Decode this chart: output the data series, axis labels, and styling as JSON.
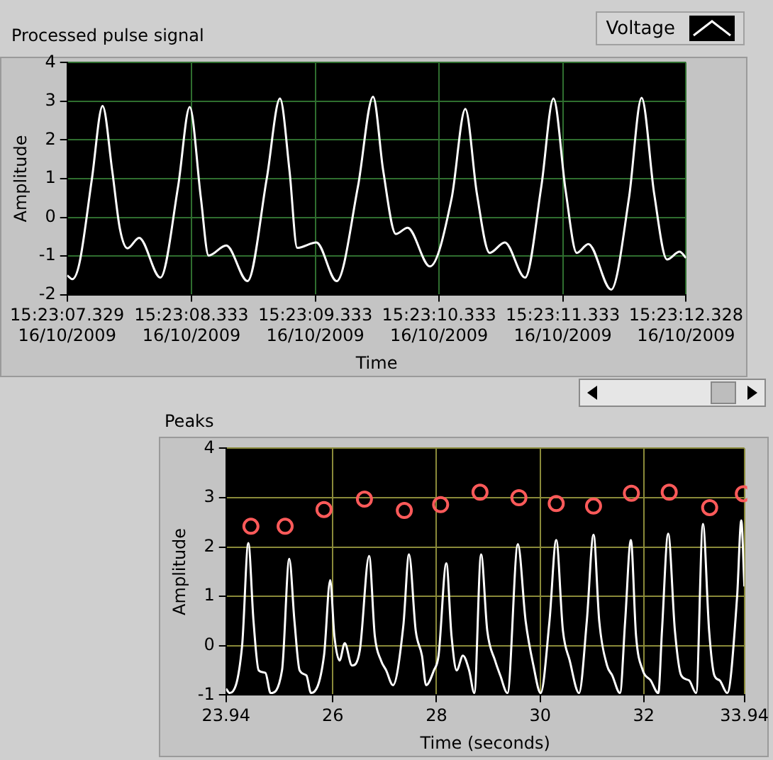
{
  "chart_data": [
    {
      "type": "line",
      "title": "Processed pulse signal",
      "xlabel": "Time",
      "ylabel": "Amplitude",
      "legend": "top right",
      "grid": true,
      "xlim": [
        "2009-10-16T15:23:07.329",
        "2009-10-16T15:23:12.328"
      ],
      "xticks": [
        {
          "value": "2009-10-16T15:23:07.329",
          "label": "15:23:07.329\n16/10/2009"
        },
        {
          "value": "2009-10-16T15:23:08.333",
          "label": "15:23:08.333\n16/10/2009"
        },
        {
          "value": "2009-10-16T15:23:09.333",
          "label": "15:23:09.333\n16/10/2009"
        },
        {
          "value": "2009-10-16T15:23:10.333",
          "label": "15:23:10.333\n16/10/2009"
        },
        {
          "value": "2009-10-16T15:23:11.333",
          "label": "15:23:11.333\n16/10/2009"
        },
        {
          "value": "2009-10-16T15:23:12.328",
          "label": "15:23:12.328\n16/10/2009"
        }
      ],
      "ylim": [
        -2,
        4
      ],
      "yticks": [
        -2,
        -1,
        0,
        1,
        2,
        3,
        4
      ],
      "x": [
        "2009-10-16T15:23:07.329",
        "2009-10-16T15:23:07.370",
        "2009-10-16T15:23:07.427",
        "2009-10-16T15:23:07.529",
        "2009-10-16T15:23:07.615",
        "2009-10-16T15:23:07.693",
        "2009-10-16T15:23:07.755",
        "2009-10-16T15:23:07.816",
        "2009-10-16T15:23:07.910",
        "2009-10-16T15:23:08.082",
        "2009-10-16T15:23:08.225",
        "2009-10-16T15:23:08.319",
        "2009-10-16T15:23:08.409",
        "2009-10-16T15:23:08.471",
        "2009-10-16T15:23:08.614",
        "2009-10-16T15:23:08.786",
        "2009-10-16T15:23:08.941",
        "2009-10-16T15:23:09.048",
        "2009-10-16T15:23:09.125",
        "2009-10-16T15:23:09.187",
        "2009-10-16T15:23:09.342",
        "2009-10-16T15:23:09.506",
        "2009-10-16T15:23:09.678",
        "2009-10-16T15:23:09.800",
        "2009-10-16T15:23:09.882",
        "2009-10-16T15:23:09.984",
        "2009-10-16T15:23:10.079",
        "2009-10-16T15:23:10.259",
        "2009-10-16T15:23:10.435",
        "2009-10-16T15:23:10.545",
        "2009-10-16T15:23:10.639",
        "2009-10-16T15:23:10.741",
        "2009-10-16T15:23:10.864",
        "2009-10-16T15:23:11.028",
        "2009-10-16T15:23:11.159",
        "2009-10-16T15:23:11.257",
        "2009-10-16T15:23:11.355",
        "2009-10-16T15:23:11.445",
        "2009-10-16T15:23:11.539",
        "2009-10-16T15:23:11.723",
        "2009-10-16T15:23:11.867",
        "2009-10-16T15:23:11.969",
        "2009-10-16T15:23:12.071",
        "2009-10-16T15:23:12.174",
        "2009-10-16T15:23:12.276",
        "2009-10-16T15:23:12.328"
      ],
      "series": [
        {
          "name": "Voltage",
          "color": "#ffffff",
          "values": [
            -1.5,
            -1.6,
            -1.2,
            1.0,
            2.88,
            1.2,
            -0.3,
            -0.8,
            -0.53,
            -1.56,
            0.8,
            2.85,
            0.5,
            -0.99,
            -0.73,
            -1.65,
            1.0,
            3.07,
            1.2,
            -0.79,
            -0.65,
            -1.65,
            0.8,
            3.12,
            1.2,
            -0.43,
            -0.27,
            -1.27,
            0.5,
            2.8,
            0.6,
            -0.92,
            -0.65,
            -1.56,
            0.8,
            3.07,
            0.7,
            -0.92,
            -0.69,
            -1.87,
            0.5,
            3.09,
            0.6,
            -1.09,
            -0.89,
            -1.05
          ]
        }
      ]
    },
    {
      "type": "line",
      "title": "Peaks",
      "xlabel": "Time (seconds)",
      "ylabel": "Amplitude",
      "grid": true,
      "xlim": [
        23.94,
        33.94
      ],
      "xticks": [
        23.94,
        26,
        28,
        30,
        32,
        33.94
      ],
      "ylim": [
        -1,
        4
      ],
      "yticks": [
        -1,
        0,
        1,
        2,
        3,
        4
      ],
      "series": [
        {
          "color": "#ffffff",
          "x": [
            23.94,
            24.01,
            24.25,
            24.37,
            24.47,
            24.57,
            24.7,
            24.8,
            25.02,
            25.16,
            25.26,
            25.36,
            25.49,
            25.58,
            25.83,
            25.95,
            26.03,
            26.13,
            26.23,
            26.37,
            26.52,
            26.7,
            26.81,
            26.93,
            27.03,
            27.16,
            27.36,
            27.47,
            27.6,
            27.72,
            27.8,
            27.95,
            28.04,
            28.19,
            28.29,
            28.39,
            28.51,
            28.63,
            28.73,
            28.86,
            28.98,
            29.13,
            29.23,
            29.37,
            29.57,
            29.72,
            29.87,
            30.01,
            30.18,
            30.31,
            30.44,
            30.57,
            30.75,
            30.9,
            31.03,
            31.14,
            31.29,
            31.39,
            31.54,
            31.64,
            31.75,
            31.85,
            31.98,
            32.13,
            32.28,
            32.35,
            32.47,
            32.6,
            32.72,
            32.87,
            33.01,
            33.14,
            33.26,
            33.36,
            33.46,
            33.61,
            33.8,
            33.88,
            33.94
          ],
          "values": [
            -0.87,
            -0.96,
            0,
            2.08,
            0.5,
            -0.5,
            -0.55,
            -0.96,
            -0.5,
            1.76,
            0.5,
            -0.5,
            -0.6,
            -0.96,
            -0.2,
            1.33,
            0.2,
            -0.3,
            0.05,
            -0.4,
            -0.1,
            1.82,
            0.2,
            -0.3,
            -0.5,
            -0.8,
            0.4,
            1.85,
            0.3,
            -0.2,
            -0.8,
            -0.5,
            -0.2,
            1.67,
            0.2,
            -0.5,
            -0.2,
            -0.5,
            -0.96,
            1.85,
            0.3,
            -0.3,
            -0.6,
            -0.96,
            2.06,
            0.5,
            -0.4,
            -0.96,
            0.5,
            2.14,
            0.3,
            -0.3,
            -0.96,
            0.5,
            2.25,
            0.5,
            -0.4,
            -0.6,
            -0.96,
            0.5,
            2.14,
            0.2,
            -0.5,
            -0.7,
            -0.96,
            0.3,
            2.27,
            0.3,
            -0.6,
            -0.7,
            -0.96,
            2.47,
            0.3,
            -0.6,
            -0.7,
            -0.96,
            1.0,
            2.54,
            1.2
          ]
        },
        {
          "type": "scatter",
          "color": "#ff5a5a",
          "marker": "circle",
          "x": [
            24.42,
            25.08,
            25.83,
            26.61,
            27.38,
            28.08,
            28.84,
            29.59,
            30.31,
            31.03,
            31.76,
            32.49,
            33.27,
            33.92
          ],
          "values": [
            2.42,
            2.42,
            2.76,
            2.97,
            2.74,
            2.86,
            3.11,
            3.0,
            2.88,
            2.83,
            3.09,
            3.11,
            2.8,
            3.08
          ]
        }
      ]
    }
  ]
}
